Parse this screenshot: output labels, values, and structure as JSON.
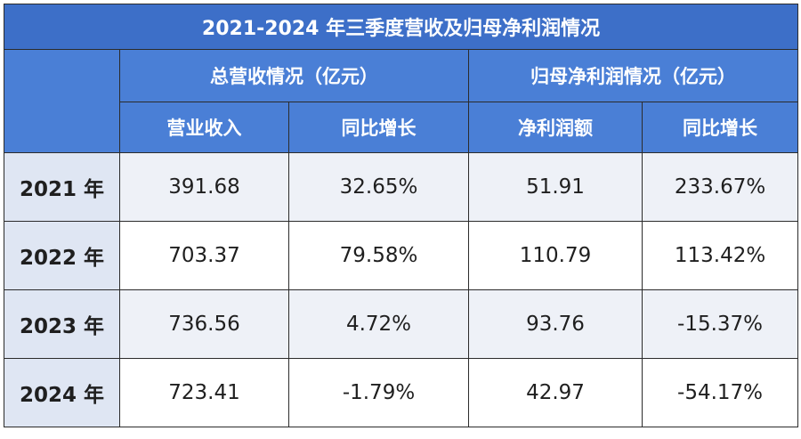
{
  "title": "2021-2024 年三季度营收及归母净利润情况",
  "group_headers": {
    "revenue": "总营收情况（亿元）",
    "profit": "归母净利润情况（亿元）"
  },
  "sub_headers": {
    "revenue": "营业收入",
    "revenue_yoy": "同比增长",
    "profit": "净利润额",
    "profit_yoy": "同比增长"
  },
  "rows": [
    {
      "year": "2021 年",
      "revenue": "391.68",
      "revenue_yoy": "32.65%",
      "profit": "51.91",
      "profit_yoy": "233.67%"
    },
    {
      "year": "2022 年",
      "revenue": "703.37",
      "revenue_yoy": "79.58%",
      "profit": "110.79",
      "profit_yoy": "113.42%"
    },
    {
      "year": "2023 年",
      "revenue": "736.56",
      "revenue_yoy": "4.72%",
      "profit": "93.76",
      "profit_yoy": "-15.37%"
    },
    {
      "year": "2024 年",
      "revenue": "723.41",
      "revenue_yoy": "-1.79%",
      "profit": "42.97",
      "profit_yoy": "-54.17%"
    }
  ],
  "colors": {
    "header_bg": "#4a7fd6",
    "title_bg": "#3d6fc8",
    "year_bg": "#dfe6f3",
    "alt_row_bg": "#eef1f7"
  }
}
